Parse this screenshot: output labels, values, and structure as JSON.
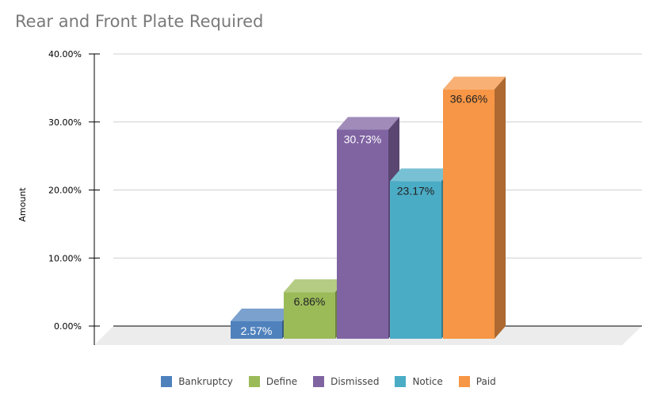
{
  "chart_data": {
    "type": "bar",
    "title": "Rear and Front Plate Required",
    "ylabel": "Amount",
    "xlabel": "",
    "ylim": [
      0,
      40
    ],
    "yticks": [
      "0.00%",
      "10.00%",
      "20.00%",
      "30.00%",
      "40.00%"
    ],
    "grid": true,
    "legend_position": "bottom",
    "three_d": true,
    "series": [
      {
        "name": "Bankruptcy",
        "value": 2.57,
        "label": "2.57%",
        "color": "#4f81bd"
      },
      {
        "name": "Define",
        "value": 6.86,
        "label": "6.86%",
        "color": "#9bbb59"
      },
      {
        "name": "Dismissed",
        "value": 30.73,
        "label": "30.73%",
        "color": "#8064a2"
      },
      {
        "name": "Notice",
        "value": 23.17,
        "label": "23.17%",
        "color": "#4bacc6"
      },
      {
        "name": "Paid",
        "value": 36.66,
        "label": "36.66%",
        "color": "#f79646"
      }
    ]
  }
}
